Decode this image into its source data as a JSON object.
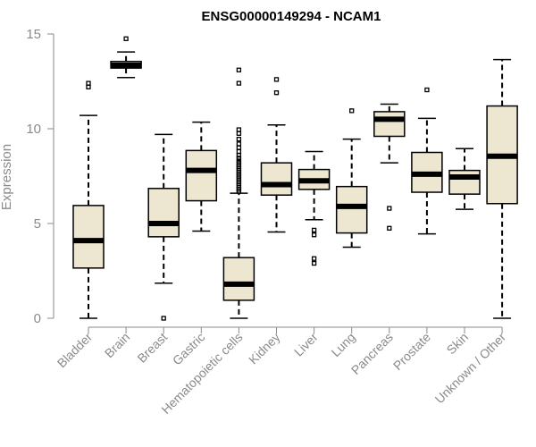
{
  "chart_data": {
    "type": "boxplot",
    "title": "ENSG00000149294 - NCAM1",
    "xlabel": "",
    "ylabel": "Expression",
    "ylim": [
      0,
      15
    ],
    "yticks": [
      0,
      5,
      10,
      15
    ],
    "grid": false,
    "box_color": "#ede7d1",
    "categories": [
      "Bladder",
      "Brain",
      "Breast",
      "Gastric",
      "Hematopoietic cells",
      "Kidney",
      "Liver",
      "Lung",
      "Pancreas",
      "Prostate",
      "Skin",
      "Unknown / Other"
    ],
    "boxes": [
      {
        "q1": 2.65,
        "median": 4.1,
        "q3": 5.95,
        "whisker_low": 0.0,
        "whisker_high": 10.7,
        "outliers": [
          12.2,
          12.4
        ]
      },
      {
        "q1": 13.2,
        "median": 13.35,
        "q3": 13.55,
        "whisker_low": 12.7,
        "whisker_high": 14.05,
        "outliers": [
          14.75
        ]
      },
      {
        "q1": 4.3,
        "median": 5.0,
        "q3": 6.85,
        "whisker_low": 1.85,
        "whisker_high": 9.7,
        "outliers": [
          0.0
        ]
      },
      {
        "q1": 6.2,
        "median": 7.8,
        "q3": 8.85,
        "whisker_low": 4.6,
        "whisker_high": 10.35,
        "outliers": []
      },
      {
        "q1": 0.95,
        "median": 1.8,
        "q3": 3.2,
        "whisker_low": 0.0,
        "whisker_high": 6.6,
        "outliers": [
          6.7,
          6.8,
          6.9,
          7.0,
          7.1,
          7.2,
          7.3,
          7.4,
          7.5,
          7.6,
          7.7,
          7.8,
          7.9,
          8.0,
          8.1,
          8.2,
          8.3,
          8.45,
          8.6,
          8.8,
          9.0,
          9.2,
          9.45,
          9.75,
          9.95,
          12.4,
          13.1
        ]
      },
      {
        "q1": 6.5,
        "median": 7.05,
        "q3": 8.2,
        "whisker_low": 4.55,
        "whisker_high": 10.2,
        "outliers": [
          11.9,
          12.6
        ]
      },
      {
        "q1": 6.8,
        "median": 7.25,
        "q3": 7.85,
        "whisker_low": 5.2,
        "whisker_high": 8.8,
        "outliers": [
          4.4,
          4.65,
          2.9,
          3.15
        ]
      },
      {
        "q1": 4.5,
        "median": 5.9,
        "q3": 6.95,
        "whisker_low": 3.75,
        "whisker_high": 9.45,
        "outliers": [
          10.95
        ]
      },
      {
        "q1": 9.6,
        "median": 10.5,
        "q3": 10.9,
        "whisker_low": 8.2,
        "whisker_high": 11.3,
        "outliers": [
          5.8,
          4.75
        ]
      },
      {
        "q1": 6.65,
        "median": 7.6,
        "q3": 8.75,
        "whisker_low": 4.45,
        "whisker_high": 10.55,
        "outliers": [
          12.05
        ]
      },
      {
        "q1": 6.55,
        "median": 7.45,
        "q3": 7.8,
        "whisker_low": 5.75,
        "whisker_high": 8.95,
        "outliers": []
      },
      {
        "q1": 6.05,
        "median": 8.55,
        "q3": 11.2,
        "whisker_low": 0.0,
        "whisker_high": 13.65,
        "outliers": []
      }
    ]
  }
}
